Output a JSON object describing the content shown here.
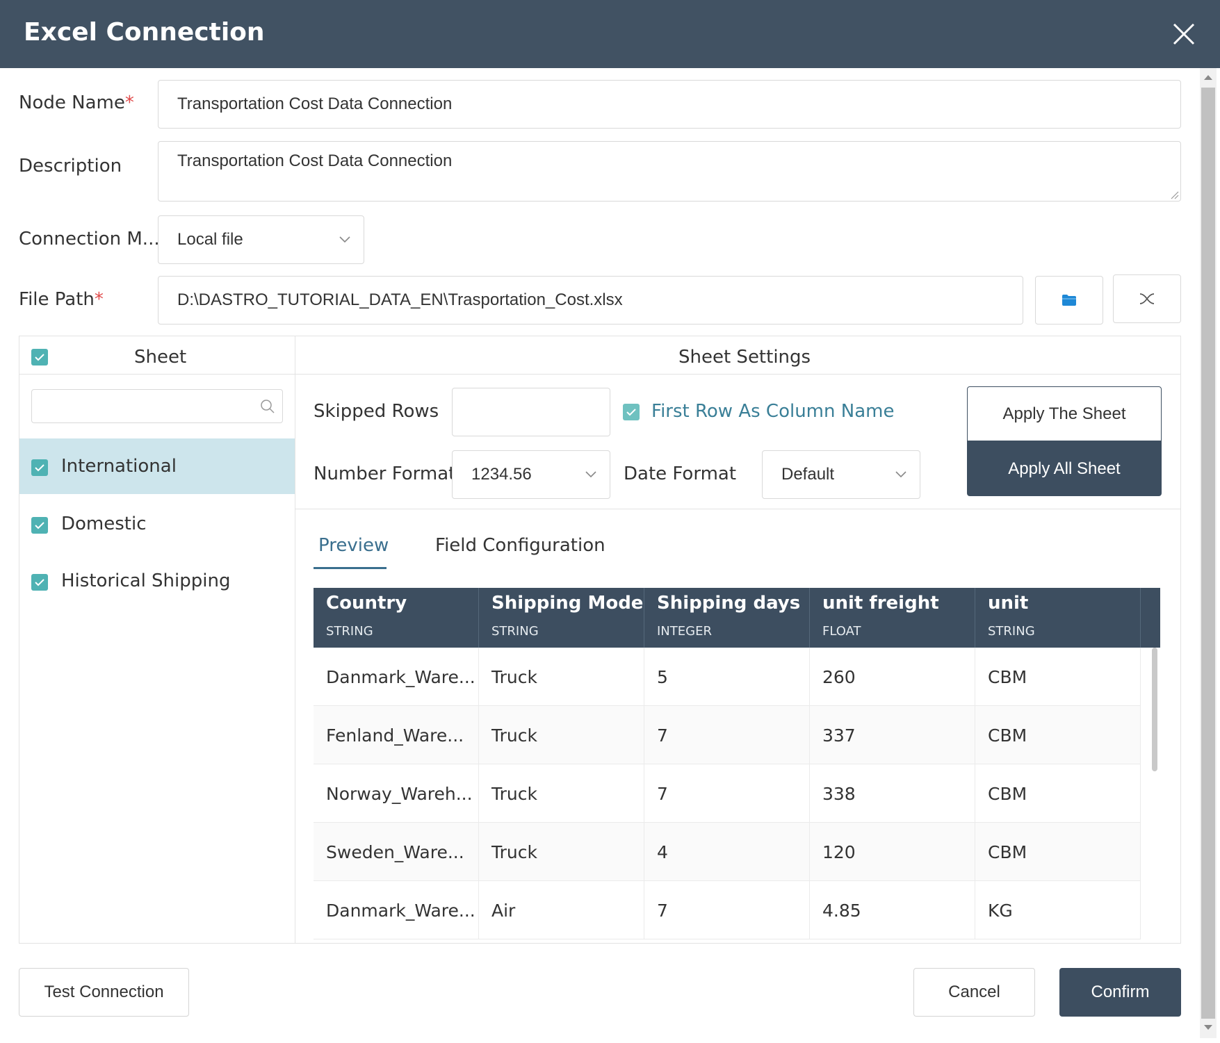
{
  "dialog": {
    "title": "Excel Connection"
  },
  "form": {
    "node_name_label": "Node Name",
    "node_name_value": "Transportation Cost Data Connection",
    "description_label": "Description",
    "description_value": "Transportation Cost Data Connection",
    "connection_mode_label": "Connection M...",
    "connection_mode_value": "Local file",
    "file_path_label": "File Path",
    "file_path_value": "D:\\DASTRO_TUTORIAL_DATA_EN\\Trasportation_Cost.xlsx",
    "required_mark": "*"
  },
  "sheet_panel": {
    "header": "Sheet",
    "all_checked": true,
    "search_placeholder": "",
    "items": [
      {
        "label": "International",
        "checked": true,
        "selected": true
      },
      {
        "label": "Domestic",
        "checked": true,
        "selected": false
      },
      {
        "label": "Historical Shipping",
        "checked": true,
        "selected": false
      }
    ]
  },
  "settings": {
    "header": "Sheet Settings",
    "skipped_rows_label": "Skipped Rows",
    "skipped_rows_value": "",
    "first_row_label": "First Row As Column Name",
    "first_row_checked": true,
    "number_format_label": "Number Format",
    "number_format_value": "1234.56",
    "date_format_label": "Date Format",
    "date_format_value": "Default",
    "apply_sheet": "Apply The Sheet",
    "apply_all": "Apply All Sheet"
  },
  "tabs": [
    {
      "label": "Preview",
      "active": true
    },
    {
      "label": "Field Configuration",
      "active": false
    }
  ],
  "table": {
    "columns": [
      {
        "name": "Country",
        "type": "STRING"
      },
      {
        "name": "Shipping Mode",
        "type": "STRING"
      },
      {
        "name": "Shipping days",
        "type": "INTEGER"
      },
      {
        "name": "unit freight",
        "type": "FLOAT"
      },
      {
        "name": "unit",
        "type": "STRING"
      }
    ],
    "rows": [
      [
        "Danmark_Ware...",
        "Truck",
        "5",
        "260",
        "CBM"
      ],
      [
        "Fenland_Ware...",
        "Truck",
        "7",
        "337",
        "CBM"
      ],
      [
        "Norway_Wareh...",
        "Truck",
        "7",
        "338",
        "CBM"
      ],
      [
        "Sweden_Ware...",
        "Truck",
        "4",
        "120",
        "CBM"
      ],
      [
        "Danmark_Ware...",
        "Air",
        "7",
        "4.85",
        "KG"
      ]
    ]
  },
  "footer": {
    "test_connection": "Test Connection",
    "cancel": "Cancel",
    "confirm": "Confirm"
  },
  "colors": {
    "titlebar": "#415263",
    "accent_teal": "#4fb2b3",
    "dark_button": "#3d4e60",
    "selected_row": "#cde5ec",
    "folder_icon": "#1e88d6",
    "required": "#e04a4a"
  },
  "icons": {
    "close": "close-icon",
    "folder": "folder-icon",
    "clear": "clear-icon",
    "search": "search-icon",
    "chevron": "chevron-down-icon",
    "check": "check-icon"
  }
}
